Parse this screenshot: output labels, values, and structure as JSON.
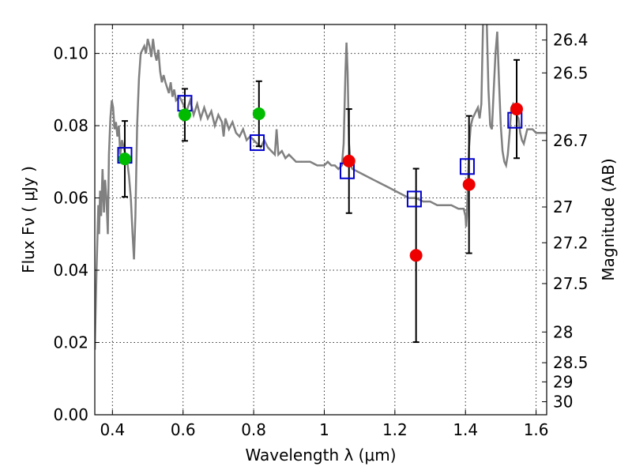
{
  "chart_data": {
    "type": "scatter",
    "xlabel": "Wavelength  λ (μm)",
    "ylabel": "Flux  Fν  ( μJy )",
    "ylabel2": "Magnitude (AB)",
    "xlim": [
      0.35,
      1.63
    ],
    "ylim": [
      0.0,
      0.108
    ],
    "grid": true,
    "x_ticks": [
      0.4,
      0.6,
      0.8,
      1.0,
      1.2,
      1.4,
      1.6
    ],
    "x_tick_labels": [
      "0.4",
      "0.6",
      "0.8",
      "1",
      "1.2",
      "1.4",
      "1.6"
    ],
    "y_ticks": [
      0.0,
      0.02,
      0.04,
      0.06,
      0.08,
      0.1
    ],
    "y_tick_labels": [
      "0.00",
      "0.02",
      "0.04",
      "0.06",
      "0.08",
      "0.10"
    ],
    "mag_ticks": [
      {
        "flux": 0.1037,
        "label": "26.4"
      },
      {
        "flux": 0.0946,
        "label": "26.5"
      },
      {
        "flux": 0.0759,
        "label": "26.7"
      },
      {
        "flux": 0.0575,
        "label": "27"
      },
      {
        "flux": 0.0476,
        "label": "27.2"
      },
      {
        "flux": 0.0363,
        "label": "27.5"
      },
      {
        "flux": 0.0229,
        "label": "28"
      },
      {
        "flux": 0.0144,
        "label": "28.5"
      },
      {
        "flux": 0.0091,
        "label": "29"
      },
      {
        "flux": 0.0036,
        "label": "30"
      }
    ],
    "model_spectrum": {
      "color": "#808080",
      "points": [
        [
          0.35,
          0.018
        ],
        [
          0.355,
          0.04
        ],
        [
          0.36,
          0.058
        ],
        [
          0.362,
          0.05
        ],
        [
          0.365,
          0.062
        ],
        [
          0.368,
          0.055
        ],
        [
          0.372,
          0.068
        ],
        [
          0.376,
          0.056
        ],
        [
          0.379,
          0.065
        ],
        [
          0.383,
          0.06
        ],
        [
          0.387,
          0.05
        ],
        [
          0.39,
          0.072
        ],
        [
          0.394,
          0.082
        ],
        [
          0.398,
          0.087
        ],
        [
          0.402,
          0.085
        ],
        [
          0.406,
          0.079
        ],
        [
          0.41,
          0.081
        ],
        [
          0.414,
          0.077
        ],
        [
          0.418,
          0.08
        ],
        [
          0.422,
          0.072
        ],
        [
          0.427,
          0.076
        ],
        [
          0.432,
          0.074
        ],
        [
          0.437,
          0.072
        ],
        [
          0.442,
          0.07
        ],
        [
          0.447,
          0.066
        ],
        [
          0.452,
          0.06
        ],
        [
          0.457,
          0.05
        ],
        [
          0.461,
          0.043
        ],
        [
          0.465,
          0.055
        ],
        [
          0.47,
          0.08
        ],
        [
          0.475,
          0.093
        ],
        [
          0.48,
          0.1
        ],
        [
          0.485,
          0.101
        ],
        [
          0.49,
          0.102
        ],
        [
          0.495,
          0.1
        ],
        [
          0.5,
          0.104
        ],
        [
          0.505,
          0.102
        ],
        [
          0.51,
          0.099
        ],
        [
          0.515,
          0.104
        ],
        [
          0.52,
          0.1
        ],
        [
          0.525,
          0.098
        ],
        [
          0.53,
          0.101
        ],
        [
          0.535,
          0.095
        ],
        [
          0.54,
          0.092
        ],
        [
          0.545,
          0.094
        ],
        [
          0.55,
          0.092
        ],
        [
          0.56,
          0.089
        ],
        [
          0.565,
          0.092
        ],
        [
          0.57,
          0.088
        ],
        [
          0.575,
          0.09
        ],
        [
          0.58,
          0.087
        ],
        [
          0.59,
          0.088
        ],
        [
          0.6,
          0.086
        ],
        [
          0.61,
          0.084
        ],
        [
          0.62,
          0.087
        ],
        [
          0.63,
          0.083
        ],
        [
          0.64,
          0.086
        ],
        [
          0.65,
          0.082
        ],
        [
          0.66,
          0.085
        ],
        [
          0.67,
          0.082
        ],
        [
          0.68,
          0.084
        ],
        [
          0.69,
          0.08
        ],
        [
          0.7,
          0.083
        ],
        [
          0.71,
          0.081
        ],
        [
          0.715,
          0.077
        ],
        [
          0.72,
          0.082
        ],
        [
          0.73,
          0.079
        ],
        [
          0.74,
          0.081
        ],
        [
          0.75,
          0.078
        ],
        [
          0.76,
          0.077
        ],
        [
          0.77,
          0.079
        ],
        [
          0.78,
          0.076
        ],
        [
          0.79,
          0.077
        ],
        [
          0.8,
          0.076
        ],
        [
          0.81,
          0.075
        ],
        [
          0.82,
          0.074
        ],
        [
          0.83,
          0.076
        ],
        [
          0.84,
          0.074
        ],
        [
          0.85,
          0.073
        ],
        [
          0.86,
          0.072
        ],
        [
          0.865,
          0.079
        ],
        [
          0.87,
          0.072
        ],
        [
          0.88,
          0.073
        ],
        [
          0.89,
          0.071
        ],
        [
          0.9,
          0.072
        ],
        [
          0.92,
          0.07
        ],
        [
          0.94,
          0.07
        ],
        [
          0.96,
          0.07
        ],
        [
          0.98,
          0.069
        ],
        [
          1.0,
          0.069
        ],
        [
          1.01,
          0.07
        ],
        [
          1.02,
          0.069
        ],
        [
          1.03,
          0.069
        ],
        [
          1.04,
          0.068
        ],
        [
          1.05,
          0.069
        ],
        [
          1.055,
          0.075
        ],
        [
          1.06,
          0.095
        ],
        [
          1.063,
          0.103
        ],
        [
          1.066,
          0.095
        ],
        [
          1.07,
          0.075
        ],
        [
          1.075,
          0.069
        ],
        [
          1.08,
          0.068
        ],
        [
          1.1,
          0.067
        ],
        [
          1.12,
          0.066
        ],
        [
          1.14,
          0.065
        ],
        [
          1.16,
          0.064
        ],
        [
          1.18,
          0.063
        ],
        [
          1.2,
          0.062
        ],
        [
          1.22,
          0.061
        ],
        [
          1.24,
          0.06
        ],
        [
          1.26,
          0.06
        ],
        [
          1.28,
          0.059
        ],
        [
          1.3,
          0.059
        ],
        [
          1.32,
          0.058
        ],
        [
          1.34,
          0.058
        ],
        [
          1.36,
          0.058
        ],
        [
          1.38,
          0.057
        ],
        [
          1.395,
          0.057
        ],
        [
          1.4,
          0.055
        ],
        [
          1.402,
          0.052
        ],
        [
          1.404,
          0.055
        ],
        [
          1.407,
          0.064
        ],
        [
          1.41,
          0.074
        ],
        [
          1.415,
          0.08
        ],
        [
          1.42,
          0.082
        ],
        [
          1.425,
          0.083
        ],
        [
          1.43,
          0.084
        ],
        [
          1.435,
          0.085
        ],
        [
          1.44,
          0.082
        ],
        [
          1.445,
          0.086
        ],
        [
          1.45,
          0.11
        ],
        [
          1.46,
          0.11
        ],
        [
          1.465,
          0.09
        ],
        [
          1.47,
          0.08
        ],
        [
          1.475,
          0.079
        ],
        [
          1.48,
          0.09
        ],
        [
          1.485,
          0.1
        ],
        [
          1.49,
          0.106
        ],
        [
          1.495,
          0.092
        ],
        [
          1.5,
          0.08
        ],
        [
          1.505,
          0.073
        ],
        [
          1.51,
          0.07
        ],
        [
          1.515,
          0.069
        ],
        [
          1.52,
          0.072
        ],
        [
          1.525,
          0.078
        ],
        [
          1.53,
          0.085
        ],
        [
          1.535,
          0.086
        ],
        [
          1.54,
          0.085
        ],
        [
          1.545,
          0.083
        ],
        [
          1.55,
          0.082
        ],
        [
          1.555,
          0.078
        ],
        [
          1.56,
          0.076
        ],
        [
          1.565,
          0.075
        ],
        [
          1.57,
          0.077
        ],
        [
          1.575,
          0.079
        ],
        [
          1.58,
          0.079
        ],
        [
          1.59,
          0.079
        ],
        [
          1.6,
          0.078
        ],
        [
          1.61,
          0.078
        ],
        [
          1.62,
          0.078
        ],
        [
          1.63,
          0.078
        ]
      ]
    },
    "model_photometry": {
      "marker": "open-square",
      "color": "#0000cc",
      "points": [
        {
          "x": 0.435,
          "y": 0.0718
        },
        {
          "x": 0.605,
          "y": 0.0862
        },
        {
          "x": 0.81,
          "y": 0.0753
        },
        {
          "x": 1.065,
          "y": 0.0675
        },
        {
          "x": 1.255,
          "y": 0.0597
        },
        {
          "x": 1.405,
          "y": 0.0687
        },
        {
          "x": 1.54,
          "y": 0.0815
        }
      ]
    },
    "observed_green": {
      "marker": "filled-circle",
      "color": "#00bb00",
      "points": [
        {
          "x": 0.435,
          "y": 0.0708,
          "err": 0.0105
        },
        {
          "x": 0.605,
          "y": 0.083,
          "err": 0.0072
        },
        {
          "x": 0.815,
          "y": 0.0833,
          "err": 0.009
        }
      ]
    },
    "observed_red": {
      "marker": "filled-circle",
      "color": "#ee0000",
      "points": [
        {
          "x": 1.07,
          "y": 0.0702,
          "err": 0.0144
        },
        {
          "x": 1.26,
          "y": 0.0441,
          "err": 0.024
        },
        {
          "x": 1.41,
          "y": 0.0637,
          "err": 0.019
        },
        {
          "x": 1.545,
          "y": 0.0846,
          "err": 0.0136
        }
      ]
    }
  }
}
